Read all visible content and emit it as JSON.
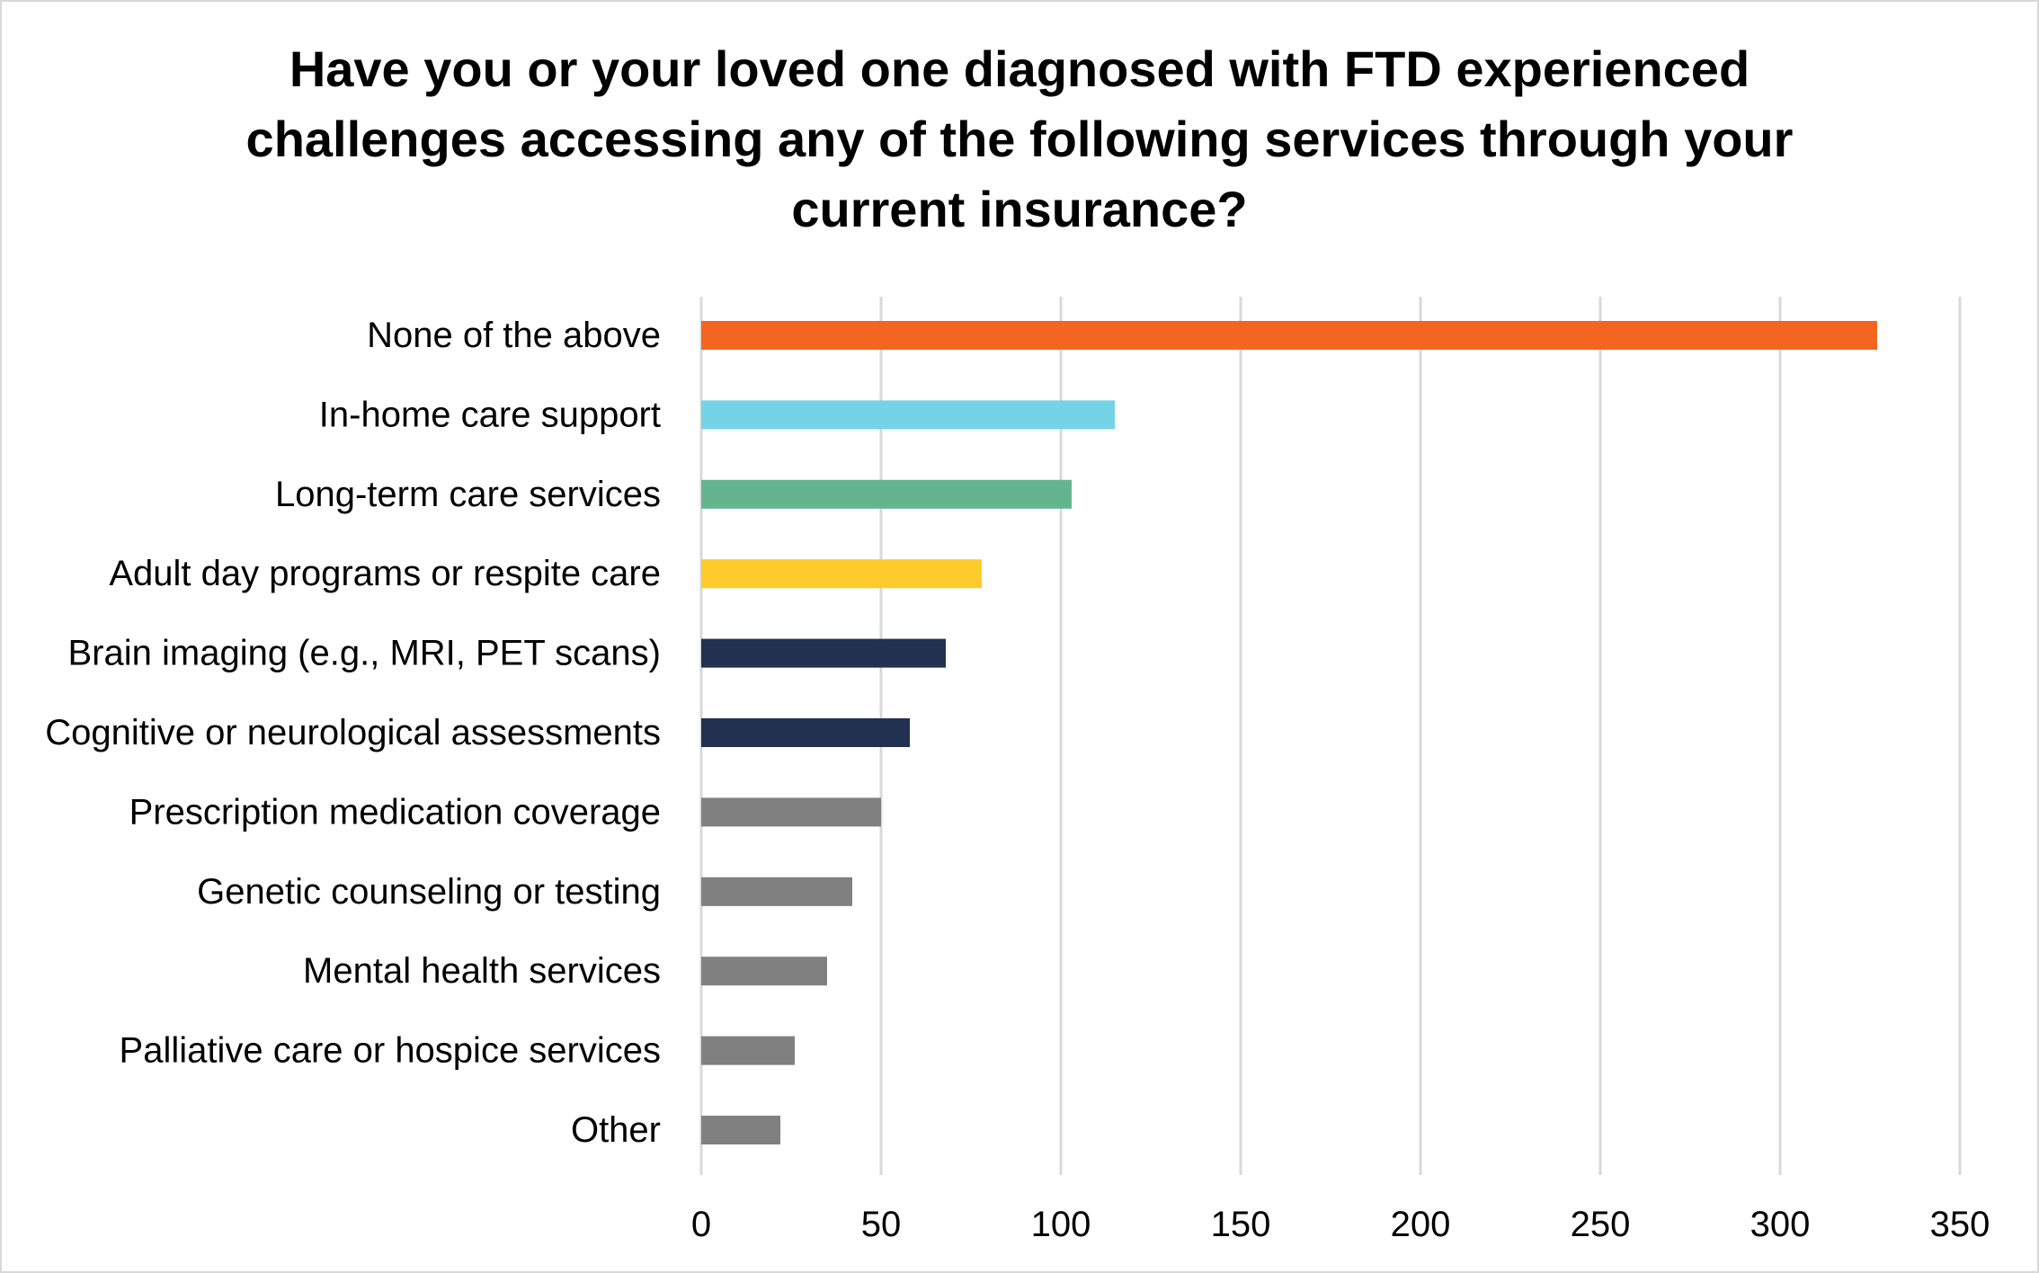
{
  "chart_data": {
    "type": "bar",
    "orientation": "horizontal",
    "title_lines": [
      "Have you or your loved one diagnosed with FTD experienced",
      "challenges accessing any of the following services through your",
      "current insurance?"
    ],
    "categories": [
      "None of the above",
      "In-home care support",
      "Long-term care services",
      "Adult day programs or respite care",
      "Brain imaging (e.g., MRI, PET scans)",
      "Cognitive or neurological assessments",
      "Prescription medication coverage",
      "Genetic counseling or testing",
      "Mental health services",
      "Palliative care or hospice services",
      "Other"
    ],
    "values": [
      327,
      115,
      103,
      78,
      68,
      58,
      50,
      42,
      35,
      26,
      22
    ],
    "bar_colors": [
      "#f4661f",
      "#74d4e6",
      "#63b590",
      "#fdcb2b",
      "#22314f",
      "#22314f",
      "#808080",
      "#808080",
      "#808080",
      "#808080",
      "#808080"
    ],
    "xlim": [
      0,
      350
    ],
    "xticks": [
      0,
      50,
      100,
      150,
      200,
      250,
      300,
      350
    ],
    "xlabel": "",
    "ylabel": "",
    "grid": "vertical",
    "legend": "none"
  }
}
